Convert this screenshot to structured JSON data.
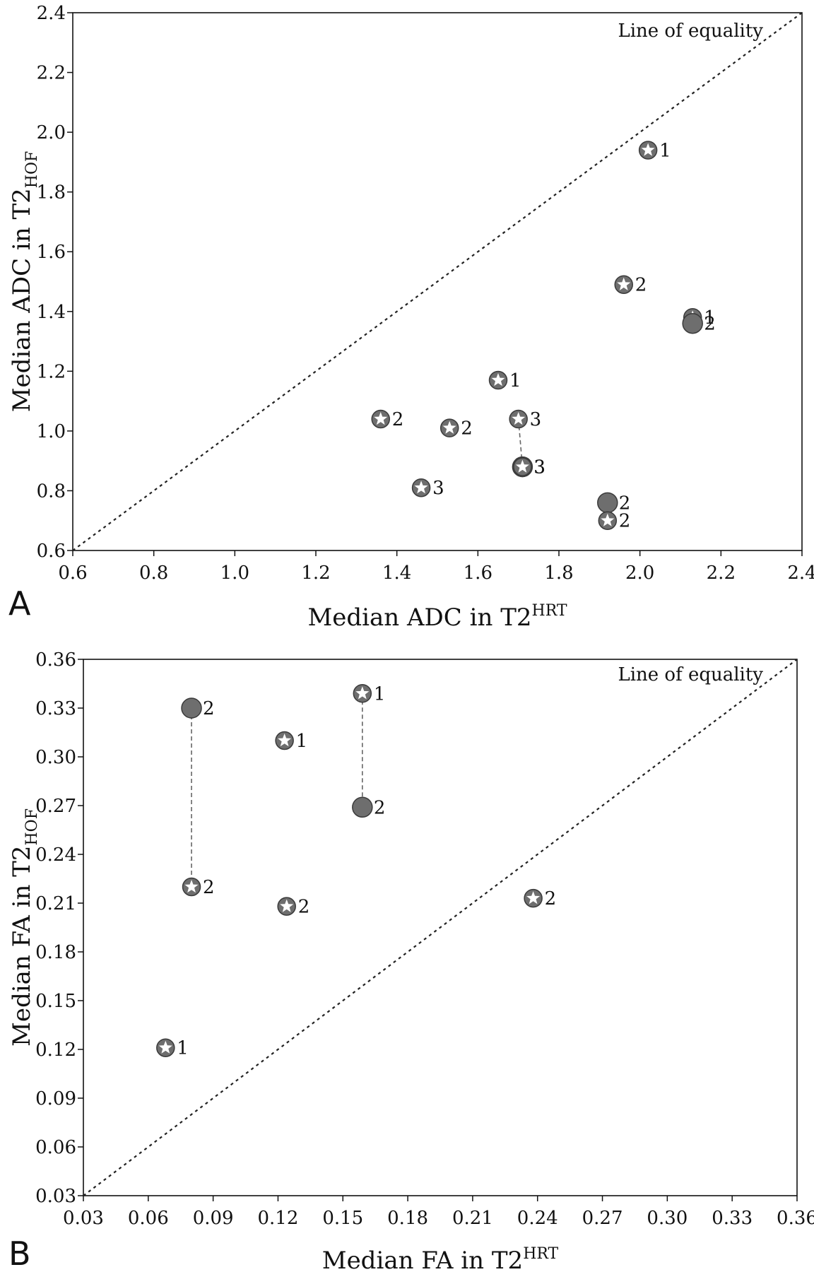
{
  "chart_data": [
    {
      "panel": "A",
      "type": "scatter",
      "xlabel": "Median ADC in T2",
      "xlabel_sup": "HRT",
      "ylabel": "Median ADC in T2",
      "ylabel_sub": "HOF",
      "xlim": [
        0.6,
        2.4
      ],
      "ylim": [
        0.6,
        2.4
      ],
      "xticks": [
        "0.6",
        "0.8",
        "1.0",
        "1.2",
        "1.4",
        "1.6",
        "1.8",
        "2.0",
        "2.2",
        "2.4"
      ],
      "yticks": [
        "0.6",
        "0.8",
        "1.0",
        "1.2",
        "1.4",
        "1.6",
        "1.8",
        "2.0",
        "2.2",
        "2.4"
      ],
      "reference_line": "Line of equality",
      "marker_types": [
        "star-in-circle",
        "filled-circle"
      ],
      "points": [
        {
          "x": 2.02,
          "y": 1.94,
          "marker": "star",
          "label": "1"
        },
        {
          "x": 1.96,
          "y": 1.49,
          "marker": "star",
          "label": "2"
        },
        {
          "x": 2.13,
          "y": 1.38,
          "marker": "star",
          "label": "1"
        },
        {
          "x": 2.13,
          "y": 1.36,
          "marker": "circle",
          "label": "2"
        },
        {
          "x": 1.65,
          "y": 1.17,
          "marker": "star",
          "label": "1"
        },
        {
          "x": 1.36,
          "y": 1.04,
          "marker": "star",
          "label": "2"
        },
        {
          "x": 1.53,
          "y": 1.01,
          "marker": "star",
          "label": "2"
        },
        {
          "x": 1.7,
          "y": 1.04,
          "marker": "star",
          "label": "3"
        },
        {
          "x": 1.71,
          "y": 0.88,
          "marker": "circle",
          "label": "3"
        },
        {
          "x": 1.71,
          "y": 0.88,
          "marker": "star",
          "label": "3"
        },
        {
          "x": 1.46,
          "y": 0.81,
          "marker": "star",
          "label": "3"
        },
        {
          "x": 1.92,
          "y": 0.76,
          "marker": "circle",
          "label": "2"
        },
        {
          "x": 1.92,
          "y": 0.7,
          "marker": "star",
          "label": "2"
        }
      ],
      "connectors": [
        {
          "x1": 1.7,
          "y1": 1.04,
          "x2": 1.71,
          "y2": 0.88
        }
      ]
    },
    {
      "panel": "B",
      "type": "scatter",
      "xlabel": "Median FA in T2",
      "xlabel_sup": "HRT",
      "ylabel": "Median FA in T2",
      "ylabel_sub": "HOF",
      "xlim": [
        0.03,
        0.36
      ],
      "ylim": [
        0.03,
        0.36
      ],
      "xticks": [
        "0.03",
        "0.06",
        "0.09",
        "0.12",
        "0.15",
        "0.18",
        "0.21",
        "0.24",
        "0.27",
        "0.30",
        "0.33",
        "0.36"
      ],
      "yticks": [
        "0.03",
        "0.06",
        "0.09",
        "0.12",
        "0.15",
        "0.18",
        "0.21",
        "0.24",
        "0.27",
        "0.30",
        "0.33",
        "0.36"
      ],
      "reference_line": "Line of equality",
      "marker_types": [
        "star-in-circle",
        "filled-circle"
      ],
      "points": [
        {
          "x": 0.08,
          "y": 0.33,
          "marker": "circle",
          "label": "2"
        },
        {
          "x": 0.08,
          "y": 0.22,
          "marker": "star",
          "label": "2"
        },
        {
          "x": 0.123,
          "y": 0.31,
          "marker": "star",
          "label": "1"
        },
        {
          "x": 0.124,
          "y": 0.208,
          "marker": "star",
          "label": "2"
        },
        {
          "x": 0.159,
          "y": 0.339,
          "marker": "star",
          "label": "1"
        },
        {
          "x": 0.159,
          "y": 0.269,
          "marker": "circle",
          "label": "2"
        },
        {
          "x": 0.238,
          "y": 0.213,
          "marker": "star",
          "label": "2"
        },
        {
          "x": 0.068,
          "y": 0.121,
          "marker": "star",
          "label": "1"
        }
      ],
      "connectors": [
        {
          "x1": 0.08,
          "y1": 0.33,
          "x2": 0.08,
          "y2": 0.22
        },
        {
          "x1": 0.159,
          "y1": 0.339,
          "x2": 0.159,
          "y2": 0.269
        }
      ]
    }
  ],
  "panels": {
    "a_letter": "A",
    "b_letter": "B"
  },
  "colors": {
    "marker_fill": "#6e6e6e",
    "marker_edge": "#3a3a3a",
    "star": "#ffffff",
    "axis": "#111111"
  }
}
